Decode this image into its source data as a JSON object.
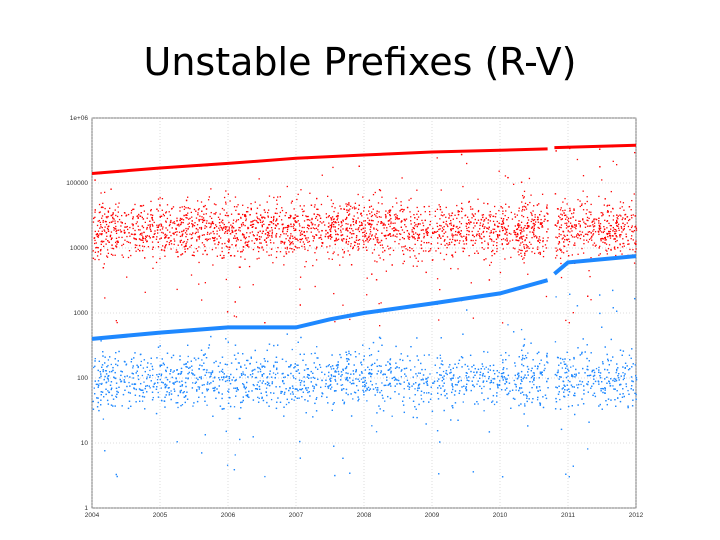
{
  "slide": {
    "title": "Unstable Prefixes (R-V)"
  },
  "chart_data": {
    "type": "scatter",
    "title": "",
    "xlabel": "",
    "ylabel": "",
    "x_ticks": [
      "2004",
      "2005",
      "2006",
      "2007",
      "2008",
      "2009",
      "2010",
      "2011",
      "2012"
    ],
    "xlim": [
      2004,
      2012
    ],
    "y_scale": "log",
    "ylim": [
      1,
      1000000
    ],
    "y_ticks": [
      {
        "value": 1,
        "label": "1"
      },
      {
        "value": 10,
        "label": "10"
      },
      {
        "value": 100,
        "label": "100"
      },
      {
        "value": 1000,
        "label": "1000"
      },
      {
        "value": 10000,
        "label": "10000"
      },
      {
        "value": 100000,
        "label": "100000"
      },
      {
        "value": 1000000,
        "label": "1e+06"
      }
    ],
    "grid": true,
    "legend": "none",
    "data_gap": [
      2010.7,
      2010.8
    ],
    "series": [
      {
        "color": "#ff0000",
        "total_x": [
          2004.0,
          2005.0,
          2006.0,
          2007.0,
          2008.0,
          2009.0,
          2010.0,
          2010.7,
          2010.8,
          2012.0
        ],
        "total_y": [
          140000,
          170000,
          200000,
          240000,
          270000,
          300000,
          320000,
          335000,
          350000,
          380000
        ],
        "daily_band": [
          4000,
          70000
        ],
        "daily_center": 20000
      },
      {
        "color": "#1e88ff",
        "total_x": [
          2004.0,
          2005.0,
          2006.0,
          2007.0,
          2007.5,
          2008.0,
          2009.0,
          2010.0,
          2010.7,
          2010.8,
          2011.0,
          2012.0
        ],
        "total_y": [
          400,
          500,
          600,
          600,
          800,
          1000,
          1400,
          2000,
          3200,
          4000,
          6000,
          7500
        ],
        "daily_band": [
          20,
          400
        ],
        "daily_center": 100
      }
    ]
  }
}
